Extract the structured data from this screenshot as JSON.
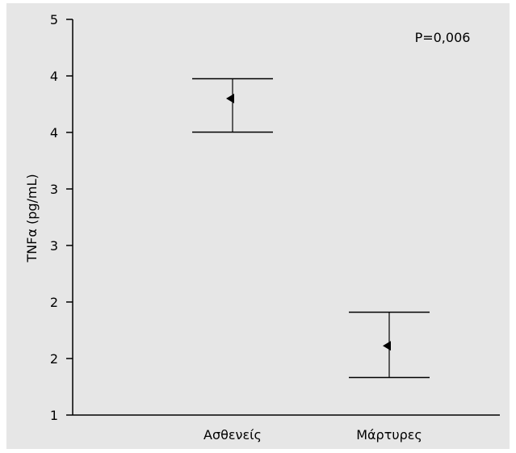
{
  "chart_data": {
    "type": "errorbar",
    "ylabel": "TNFα (pg/mL)",
    "annotation": "P=0,006",
    "y_tick_labels": [
      "1",
      "2",
      "2",
      "3",
      "3",
      "4",
      "4",
      "5"
    ],
    "ylim": [
      1,
      5
    ],
    "categories": [
      "Ασθενείς",
      "Μάρτυρες"
    ],
    "points": [
      {
        "category": "Ασθενείς",
        "mean": 4.2,
        "lower": 3.86,
        "upper": 4.4
      },
      {
        "category": "Μάρτυρες",
        "mean": 1.7,
        "lower": 1.38,
        "upper": 2.04
      }
    ],
    "colors": {
      "background": "#e6e6e6",
      "ink": "#000000"
    },
    "marker": "left-triangle"
  }
}
